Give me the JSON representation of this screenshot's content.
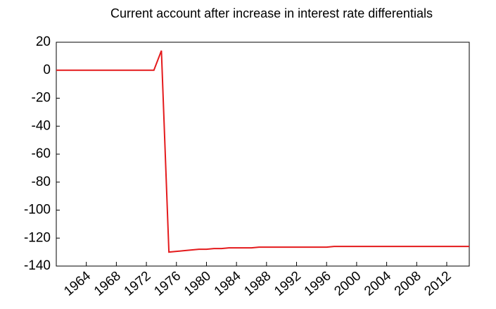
{
  "chart_data": {
    "type": "line",
    "title": "Current account after increase in interest rate differentials",
    "x": [
      1960,
      1961,
      1962,
      1963,
      1964,
      1965,
      1966,
      1967,
      1968,
      1969,
      1970,
      1971,
      1972,
      1973,
      1974,
      1975,
      1976,
      1977,
      1978,
      1979,
      1980,
      1981,
      1982,
      1983,
      1984,
      1985,
      1986,
      1987,
      1988,
      1989,
      1990,
      1991,
      1992,
      1993,
      1994,
      1995,
      1996,
      1997,
      1998,
      1999,
      2000,
      2001,
      2002,
      2003,
      2004,
      2005,
      2006,
      2007,
      2008,
      2009,
      2010,
      2011,
      2012,
      2013,
      2014,
      2015
    ],
    "series": [
      {
        "color": "#e41a1c",
        "values": [
          0,
          0,
          0,
          0,
          0,
          0,
          0,
          0,
          0,
          0,
          0,
          0,
          0,
          0,
          14,
          -130,
          -129.5,
          -129,
          -128.5,
          -128,
          -128,
          -127.5,
          -127.5,
          -127,
          -127,
          -127,
          -127,
          -126.5,
          -126.5,
          -126.5,
          -126.5,
          -126.5,
          -126.5,
          -126.5,
          -126.5,
          -126.5,
          -126.5,
          -126,
          -126,
          -126,
          -126,
          -126,
          -126,
          -126,
          -126,
          -126,
          -126,
          -126,
          -126,
          -126,
          -126,
          -126,
          -126,
          -126,
          -126,
          -126
        ]
      }
    ],
    "xlim": [
      1960,
      2015
    ],
    "xticks": [
      1964,
      1968,
      1972,
      1976,
      1980,
      1984,
      1988,
      1992,
      1996,
      2000,
      2004,
      2008,
      2012
    ],
    "ylim": [
      -140,
      20
    ],
    "yticks": [
      20,
      0,
      -20,
      -40,
      -60,
      -80,
      -100,
      -120,
      -140
    ],
    "grid": false
  }
}
